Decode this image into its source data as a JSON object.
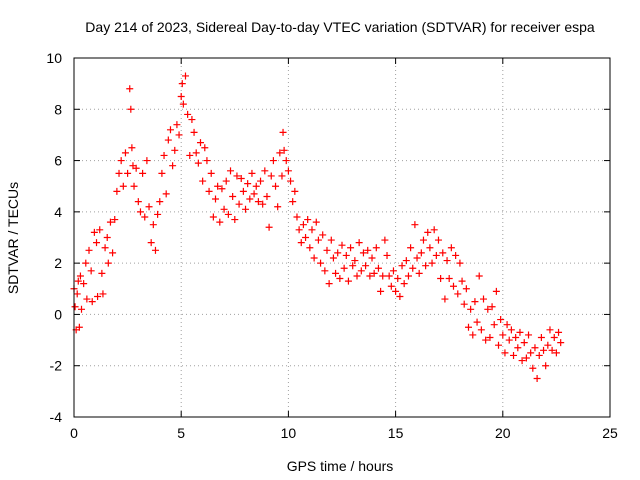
{
  "chart_data": {
    "type": "scatter",
    "title": "Day 214 of 2023, Sidereal Day-to-day VTEC variation (SDTVAR) for receiver espa",
    "xlabel": "GPS time / hours",
    "ylabel": "SDTVAR / TECUs",
    "xlim": [
      0,
      25
    ],
    "ylim": [
      -4,
      10
    ],
    "xticks": [
      0,
      5,
      10,
      15,
      20,
      25
    ],
    "yticks": [
      -4,
      -2,
      0,
      2,
      4,
      6,
      8,
      10
    ],
    "grid": true,
    "marker": "+",
    "series_color": "#ff0000",
    "series": [
      {
        "name": "SDTVAR",
        "points": [
          [
            0.0,
            1.0
          ],
          [
            0.05,
            0.3
          ],
          [
            0.1,
            -0.6
          ],
          [
            0.15,
            0.8
          ],
          [
            0.2,
            1.3
          ],
          [
            0.25,
            -0.5
          ],
          [
            0.3,
            1.5
          ],
          [
            0.35,
            0.2
          ],
          [
            0.45,
            1.2
          ],
          [
            0.55,
            2.0
          ],
          [
            0.6,
            0.6
          ],
          [
            0.7,
            2.5
          ],
          [
            0.8,
            1.7
          ],
          [
            0.85,
            0.5
          ],
          [
            0.95,
            3.2
          ],
          [
            1.05,
            2.8
          ],
          [
            1.1,
            0.7
          ],
          [
            1.2,
            3.3
          ],
          [
            1.3,
            1.6
          ],
          [
            1.35,
            0.8
          ],
          [
            1.45,
            2.6
          ],
          [
            1.55,
            3.0
          ],
          [
            1.6,
            2.0
          ],
          [
            1.7,
            3.6
          ],
          [
            1.8,
            2.4
          ],
          [
            1.9,
            3.7
          ],
          [
            2.0,
            4.8
          ],
          [
            2.1,
            5.5
          ],
          [
            2.2,
            6.0
          ],
          [
            2.3,
            5.0
          ],
          [
            2.4,
            6.3
          ],
          [
            2.5,
            5.5
          ],
          [
            2.6,
            8.8
          ],
          [
            2.65,
            8.0
          ],
          [
            2.7,
            6.5
          ],
          [
            2.75,
            5.8
          ],
          [
            2.8,
            5.0
          ],
          [
            2.9,
            5.7
          ],
          [
            3.0,
            4.4
          ],
          [
            3.1,
            4.0
          ],
          [
            3.2,
            5.5
          ],
          [
            3.3,
            3.8
          ],
          [
            3.4,
            6.0
          ],
          [
            3.5,
            4.2
          ],
          [
            3.6,
            2.8
          ],
          [
            3.7,
            3.5
          ],
          [
            3.8,
            2.5
          ],
          [
            3.9,
            3.9
          ],
          [
            4.0,
            4.4
          ],
          [
            4.1,
            5.5
          ],
          [
            4.2,
            6.2
          ],
          [
            4.3,
            4.7
          ],
          [
            4.4,
            6.8
          ],
          [
            4.5,
            7.2
          ],
          [
            4.6,
            5.8
          ],
          [
            4.7,
            6.4
          ],
          [
            4.8,
            7.4
          ],
          [
            4.9,
            7.0
          ],
          [
            5.0,
            8.5
          ],
          [
            5.05,
            9.0
          ],
          [
            5.1,
            8.2
          ],
          [
            5.2,
            9.3
          ],
          [
            5.3,
            7.8
          ],
          [
            5.4,
            6.2
          ],
          [
            5.5,
            7.6
          ],
          [
            5.6,
            7.1
          ],
          [
            5.7,
            6.3
          ],
          [
            5.8,
            5.9
          ],
          [
            5.9,
            6.7
          ],
          [
            6.0,
            5.2
          ],
          [
            6.1,
            6.5
          ],
          [
            6.2,
            6.0
          ],
          [
            6.3,
            4.8
          ],
          [
            6.4,
            5.5
          ],
          [
            6.5,
            3.8
          ],
          [
            6.6,
            4.5
          ],
          [
            6.7,
            5.0
          ],
          [
            6.8,
            3.6
          ],
          [
            6.9,
            4.9
          ],
          [
            7.0,
            4.1
          ],
          [
            7.1,
            5.2
          ],
          [
            7.2,
            3.9
          ],
          [
            7.3,
            5.6
          ],
          [
            7.4,
            4.6
          ],
          [
            7.5,
            3.7
          ],
          [
            7.6,
            5.4
          ],
          [
            7.7,
            4.3
          ],
          [
            7.8,
            5.3
          ],
          [
            7.9,
            4.8
          ],
          [
            8.0,
            4.1
          ],
          [
            8.1,
            5.1
          ],
          [
            8.2,
            4.5
          ],
          [
            8.3,
            5.5
          ],
          [
            8.4,
            4.7
          ],
          [
            8.5,
            5.0
          ],
          [
            8.6,
            4.4
          ],
          [
            8.7,
            5.2
          ],
          [
            8.8,
            4.3
          ],
          [
            8.9,
            5.6
          ],
          [
            9.0,
            4.6
          ],
          [
            9.1,
            3.4
          ],
          [
            9.2,
            5.4
          ],
          [
            9.3,
            6.0
          ],
          [
            9.4,
            5.0
          ],
          [
            9.5,
            4.2
          ],
          [
            9.6,
            6.3
          ],
          [
            9.7,
            5.4
          ],
          [
            9.75,
            7.1
          ],
          [
            9.8,
            6.4
          ],
          [
            9.9,
            6.0
          ],
          [
            10.0,
            5.6
          ],
          [
            10.1,
            5.2
          ],
          [
            10.2,
            4.4
          ],
          [
            10.3,
            4.8
          ],
          [
            10.4,
            3.8
          ],
          [
            10.5,
            3.3
          ],
          [
            10.6,
            2.8
          ],
          [
            10.7,
            3.5
          ],
          [
            10.8,
            3.0
          ],
          [
            10.9,
            3.7
          ],
          [
            11.0,
            2.6
          ],
          [
            11.1,
            3.3
          ],
          [
            11.2,
            2.2
          ],
          [
            11.3,
            3.6
          ],
          [
            11.4,
            2.9
          ],
          [
            11.5,
            2.0
          ],
          [
            11.6,
            3.1
          ],
          [
            11.7,
            1.7
          ],
          [
            11.8,
            2.5
          ],
          [
            11.9,
            1.2
          ],
          [
            12.0,
            2.9
          ],
          [
            12.1,
            2.2
          ],
          [
            12.2,
            1.6
          ],
          [
            12.3,
            2.4
          ],
          [
            12.4,
            1.4
          ],
          [
            12.5,
            2.7
          ],
          [
            12.6,
            1.8
          ],
          [
            12.7,
            2.3
          ],
          [
            12.8,
            1.3
          ],
          [
            12.9,
            2.6
          ],
          [
            13.0,
            1.9
          ],
          [
            13.1,
            2.1
          ],
          [
            13.2,
            1.5
          ],
          [
            13.3,
            2.8
          ],
          [
            13.4,
            1.7
          ],
          [
            13.5,
            2.4
          ],
          [
            13.6,
            1.9
          ],
          [
            13.7,
            2.5
          ],
          [
            13.8,
            1.5
          ],
          [
            13.9,
            2.2
          ],
          [
            14.0,
            1.6
          ],
          [
            14.1,
            2.6
          ],
          [
            14.2,
            1.8
          ],
          [
            14.3,
            0.9
          ],
          [
            14.4,
            1.5
          ],
          [
            14.5,
            2.9
          ],
          [
            14.6,
            2.3
          ],
          [
            14.7,
            1.5
          ],
          [
            14.8,
            1.1
          ],
          [
            14.9,
            1.7
          ],
          [
            15.0,
            0.9
          ],
          [
            15.1,
            1.4
          ],
          [
            15.2,
            0.7
          ],
          [
            15.3,
            1.9
          ],
          [
            15.4,
            1.2
          ],
          [
            15.5,
            2.1
          ],
          [
            15.6,
            1.5
          ],
          [
            15.7,
            2.6
          ],
          [
            15.8,
            1.8
          ],
          [
            15.9,
            3.5
          ],
          [
            16.0,
            2.2
          ],
          [
            16.1,
            1.6
          ],
          [
            16.2,
            2.4
          ],
          [
            16.3,
            2.9
          ],
          [
            16.4,
            1.9
          ],
          [
            16.5,
            3.2
          ],
          [
            16.6,
            2.6
          ],
          [
            16.7,
            2.0
          ],
          [
            16.8,
            3.3
          ],
          [
            16.9,
            2.3
          ],
          [
            17.0,
            2.9
          ],
          [
            17.1,
            1.4
          ],
          [
            17.2,
            2.4
          ],
          [
            17.3,
            0.6
          ],
          [
            17.4,
            2.1
          ],
          [
            17.5,
            1.4
          ],
          [
            17.6,
            2.6
          ],
          [
            17.7,
            1.1
          ],
          [
            17.8,
            2.3
          ],
          [
            17.9,
            0.8
          ],
          [
            18.0,
            2.0
          ],
          [
            18.1,
            1.3
          ],
          [
            18.2,
            0.4
          ],
          [
            18.3,
            1.0
          ],
          [
            18.4,
            -0.5
          ],
          [
            18.5,
            0.2
          ],
          [
            18.6,
            -0.8
          ],
          [
            18.7,
            0.5
          ],
          [
            18.8,
            -0.3
          ],
          [
            18.9,
            1.5
          ],
          [
            19.0,
            -0.6
          ],
          [
            19.1,
            0.6
          ],
          [
            19.2,
            -1.0
          ],
          [
            19.3,
            0.2
          ],
          [
            19.4,
            -0.9
          ],
          [
            19.5,
            0.3
          ],
          [
            19.6,
            -0.4
          ],
          [
            19.7,
            0.9
          ],
          [
            19.8,
            -1.2
          ],
          [
            19.9,
            -0.2
          ],
          [
            20.0,
            -0.8
          ],
          [
            20.1,
            -1.5
          ],
          [
            20.2,
            -0.4
          ],
          [
            20.3,
            -1.0
          ],
          [
            20.4,
            -0.6
          ],
          [
            20.5,
            -1.6
          ],
          [
            20.6,
            -0.9
          ],
          [
            20.7,
            -1.3
          ],
          [
            20.8,
            -0.7
          ],
          [
            20.9,
            -1.8
          ],
          [
            21.0,
            -1.1
          ],
          [
            21.1,
            -1.7
          ],
          [
            21.2,
            -0.8
          ],
          [
            21.3,
            -1.5
          ],
          [
            21.4,
            -2.1
          ],
          [
            21.5,
            -1.3
          ],
          [
            21.6,
            -2.5
          ],
          [
            21.7,
            -1.6
          ],
          [
            21.8,
            -0.9
          ],
          [
            21.9,
            -1.4
          ],
          [
            22.0,
            -2.0
          ],
          [
            22.1,
            -1.2
          ],
          [
            22.2,
            -0.6
          ],
          [
            22.3,
            -1.4
          ],
          [
            22.4,
            -0.9
          ],
          [
            22.5,
            -1.5
          ],
          [
            22.6,
            -0.7
          ],
          [
            22.7,
            -1.1
          ]
        ]
      }
    ]
  }
}
